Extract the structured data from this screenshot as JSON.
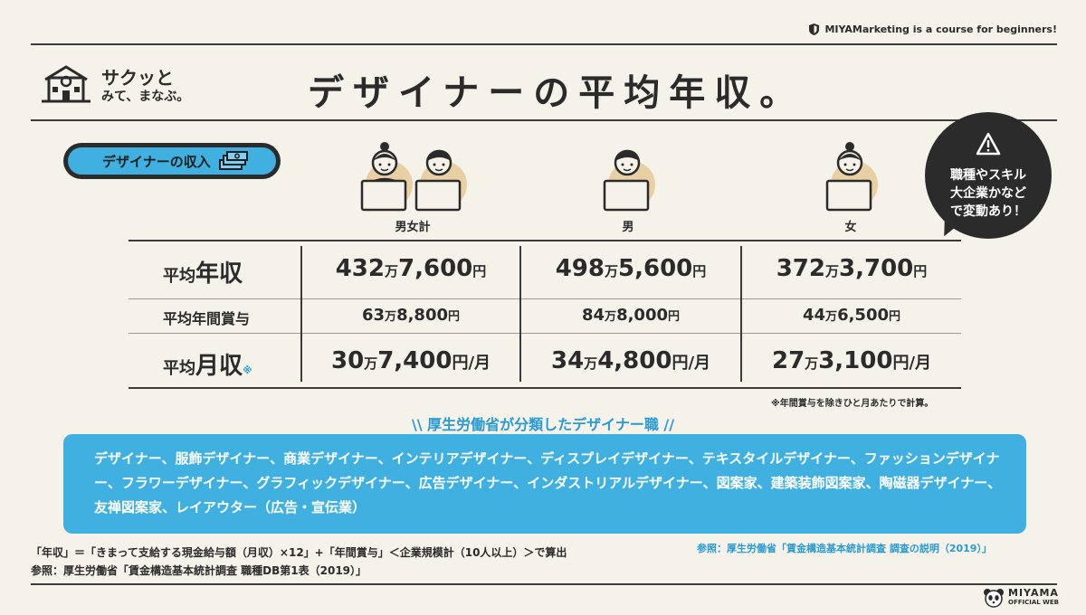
{
  "brand": {
    "tagline": "MIYAMarketing is a course for beginners!",
    "icon": "shield-icon"
  },
  "logo": {
    "line1": "サクッと",
    "line2": "みて、まなぶ。",
    "icon": "school-icon"
  },
  "title": "デザイナーの平均年収。",
  "section_pill": {
    "label": "デザイナーの収入",
    "icon": "money-stack-icon"
  },
  "callout": {
    "line1": "職種やスキル",
    "line2": "大企業かなど",
    "line3": "で変動あり！",
    "icon": "warning-icon"
  },
  "columns": [
    "男女計",
    "男",
    "女"
  ],
  "rows": [
    {
      "label_prefix": "平均",
      "label_main": "年収",
      "note_mark": "",
      "cells": [
        {
          "man": "432",
          "man_unit": "万",
          "rest": "7,600",
          "yen": "円",
          "per": ""
        },
        {
          "man": "498",
          "man_unit": "万",
          "rest": "5,600",
          "yen": "円",
          "per": ""
        },
        {
          "man": "372",
          "man_unit": "万",
          "rest": "3,700",
          "yen": "円",
          "per": ""
        }
      ]
    },
    {
      "label_prefix": "平均年間賞与",
      "label_main": "",
      "note_mark": "",
      "cells": [
        {
          "man": "63",
          "man_unit": "万",
          "rest": "8,800",
          "yen": "円",
          "per": ""
        },
        {
          "man": "84",
          "man_unit": "万",
          "rest": "8,000",
          "yen": "円",
          "per": ""
        },
        {
          "man": "44",
          "man_unit": "万",
          "rest": "6,500",
          "yen": "円",
          "per": ""
        }
      ]
    },
    {
      "label_prefix": "平均",
      "label_main": "月収",
      "note_mark": "※",
      "cells": [
        {
          "man": "30",
          "man_unit": "万",
          "rest": "7,400",
          "yen": "円",
          "per": "/月"
        },
        {
          "man": "34",
          "man_unit": "万",
          "rest": "4,800",
          "yen": "円",
          "per": "/月"
        },
        {
          "man": "27",
          "man_unit": "万",
          "rest": "3,100",
          "yen": "円",
          "per": "/月"
        }
      ]
    }
  ],
  "table_note": "※年間賞与を除きひと月あたりで計算。",
  "mhlw_heading": "厚生労働省が分類したデザイナー職",
  "job_list": "デザイナー、服飾デザイナー、商業デザイナー、インテリアデザイナー、ディスプレイデザイナー、テキスタイルデザイナー、ファッションデザイナー、フラワーデザイナー、グラフィックデザイナー、広告デザイナー、インダストリアルデザイナー、図案家、建築装飾図案家、陶磁器デザイナー、友禅図案家、レイアウター（広告・宣伝業）",
  "job_ref": "参照：厚生労働省「賃金構造基本統計調査 調査の説明（2019）」",
  "footnote1": "「年収」＝「きまって支給する現金給与額（月収）×12」+「年間賞与」＜企業規模計（10人以上）＞で算出",
  "footnote2": "参照：厚生労働省「賃金構造基本統計調査 職種DB第1表（2019）」",
  "footer_logo": {
    "name": "MIYAMA",
    "sub": "OFFICIAL WEB",
    "icon": "panda-icon"
  },
  "colors": {
    "accent": "#3fb0e0",
    "background": "#f5f2e9",
    "ink": "#2b2b2b",
    "note_blue": "#2a9ad3"
  }
}
